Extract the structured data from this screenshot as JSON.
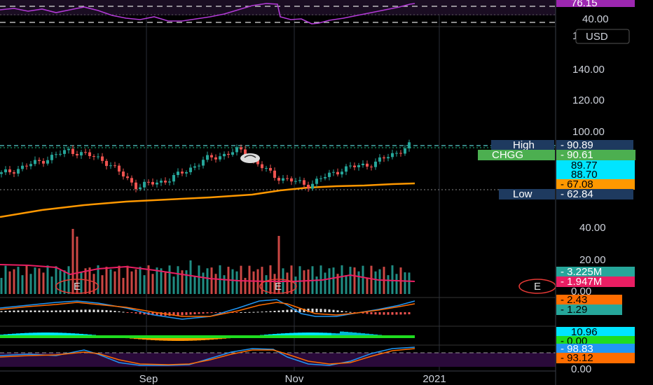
{
  "symbol": "CHGG",
  "currency": "USD",
  "time_axis": [
    "Sep",
    "Nov",
    "2021"
  ],
  "price_axis": {
    "ticks": [
      "140.00",
      "120.00",
      "100.00",
      "40.00",
      "20.00",
      "0.00"
    ],
    "partial_top": "1"
  },
  "labels": {
    "high": {
      "label": "High",
      "value": "90.89"
    },
    "last": {
      "label": "CHGG",
      "value": "90.61"
    },
    "low": {
      "label": "Low",
      "value": "62.84"
    },
    "ma_fast": "89.77",
    "ma_mid": "88.70",
    "ma_slow": "67.08"
  },
  "earnings_marker": "E",
  "rsi": {
    "value": "76.15",
    "level": "40.00"
  },
  "volume": {
    "value": "3.225M",
    "ma": "1.947M",
    "zero": "0.00"
  },
  "macd": {
    "value": "2.43",
    "signal": "1.29"
  },
  "momentum": {
    "value": "10.96",
    "zero": "0.00"
  },
  "stoch": {
    "k": "98.83",
    "d": "93.12",
    "zero": "0.00"
  },
  "colors": {
    "up": "#26a69a",
    "down": "#ef5350",
    "ma_orange": "#ff9800",
    "rsi": "#9c27b0",
    "volume_ma": "#e91e63",
    "macd": "#2196f3",
    "signal": "#ff6d00",
    "cyan": "#00e5ff",
    "green_tag": "#4caf50",
    "navy": "#1e3a5f",
    "purple_bg": "#2a0a3a"
  },
  "chart_data": {
    "type": "candlestick",
    "symbol": "CHGG",
    "x_labels": [
      "Sep",
      "Nov",
      "2021"
    ],
    "price_close_points": [
      [
        "~Jul",
        73
      ],
      [
        "~Aug",
        80
      ],
      [
        "late Aug",
        88
      ],
      [
        "early Sep",
        82
      ],
      [
        "mid Sep",
        65
      ],
      [
        "late Sep",
        70
      ],
      [
        "mid Oct",
        82
      ],
      [
        "late Oct",
        88
      ],
      [
        "early Nov",
        72
      ],
      [
        "mid Nov",
        66
      ],
      [
        "late Nov",
        76
      ],
      [
        "Dec",
        80
      ],
      [
        "mid Dec",
        90.61
      ]
    ],
    "high": 90.89,
    "low": 62.84,
    "last": 90.61,
    "moving_averages": [
      89.77,
      88.7,
      67.08
    ],
    "volume_last": "3.225M",
    "volume_ma": "1.947M",
    "rsi_last": 76.15,
    "macd": 2.43,
    "macd_signal": 1.29,
    "momentum": 10.96,
    "stoch_k": 98.83,
    "stoch_d": 93.12
  }
}
